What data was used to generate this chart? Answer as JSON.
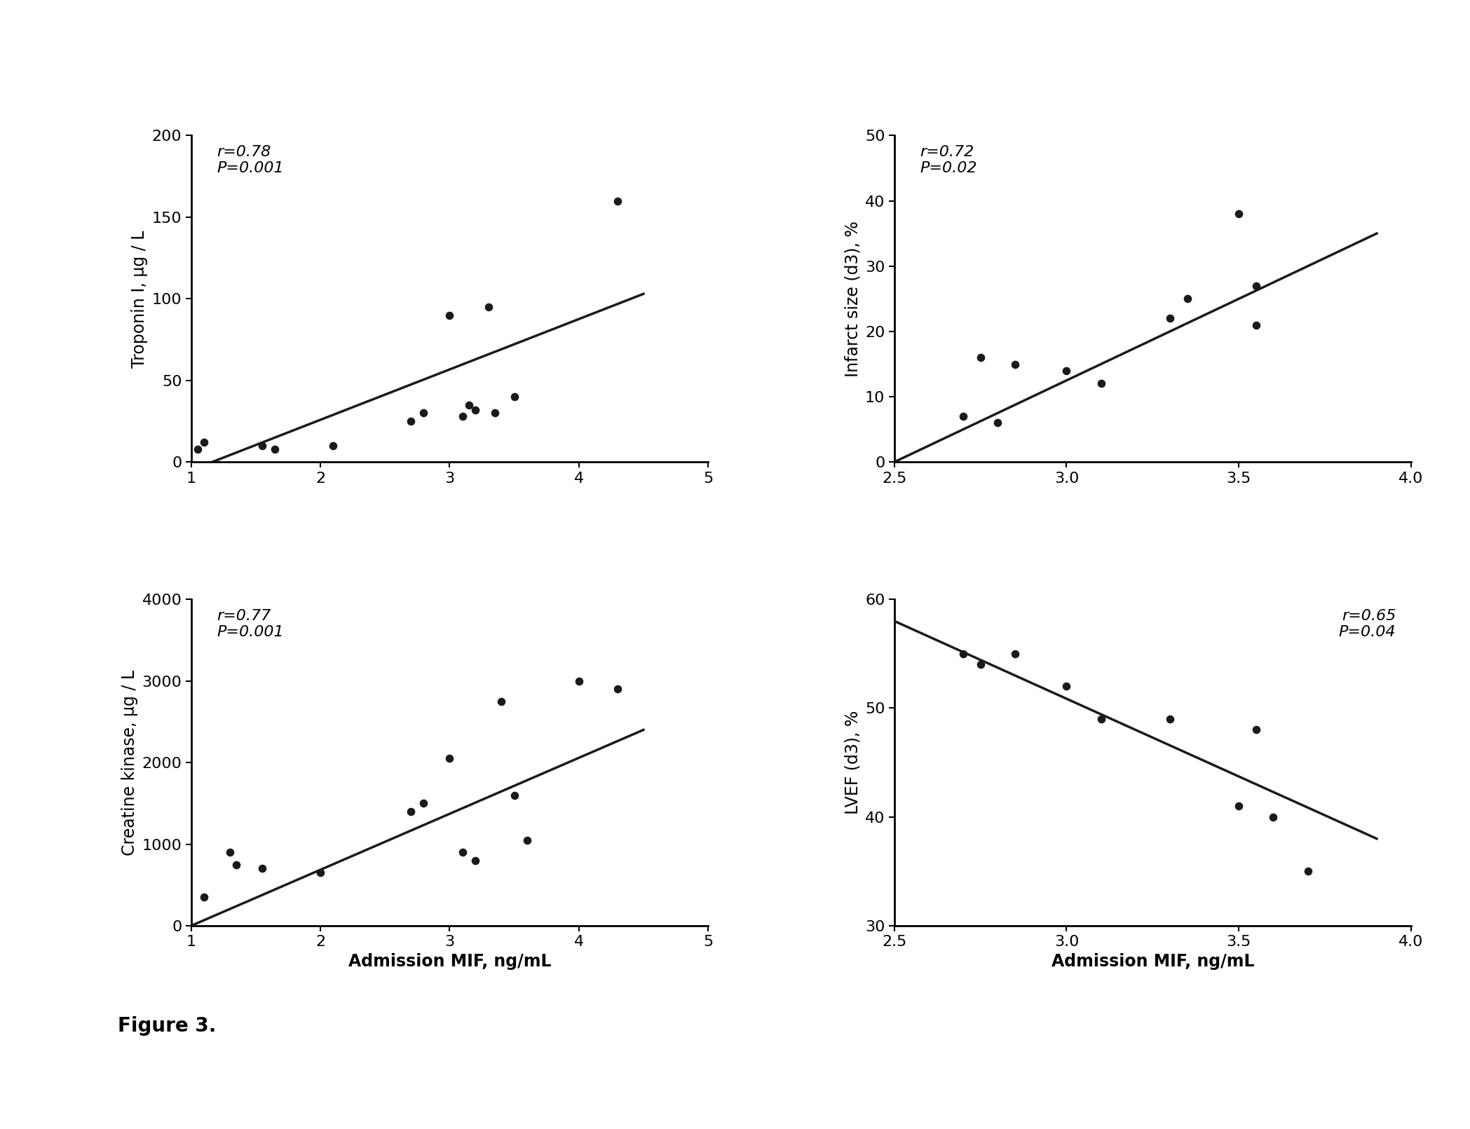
{
  "panel1": {
    "ylabel": "Troponin I, μg / L",
    "xlabel": "",
    "annotation": "r=0.78\nP=0.001",
    "annotation_loc": "upper left",
    "xlim": [
      1,
      5
    ],
    "ylim": [
      0,
      200
    ],
    "xticks": [
      1,
      2,
      3,
      4,
      5
    ],
    "yticks": [
      0,
      50,
      100,
      150,
      200
    ],
    "x": [
      1.05,
      1.1,
      1.55,
      1.65,
      2.1,
      2.7,
      2.8,
      3.0,
      3.1,
      3.15,
      3.2,
      3.3,
      3.35,
      3.5,
      4.3
    ],
    "y": [
      8,
      12,
      10,
      8,
      10,
      25,
      30,
      90,
      28,
      35,
      32,
      95,
      30,
      40,
      160
    ],
    "fit_x": [
      1.0,
      4.5
    ],
    "fit_y": [
      -5,
      103
    ]
  },
  "panel2": {
    "ylabel": "Infarct size (d3), %",
    "xlabel": "",
    "annotation": "r=0.72\nP=0.02",
    "annotation_loc": "upper left",
    "xlim": [
      2.5,
      4.0
    ],
    "ylim": [
      0,
      50
    ],
    "xticks": [
      2.5,
      3.0,
      3.5,
      4.0
    ],
    "yticks": [
      0,
      10,
      20,
      30,
      40,
      50
    ],
    "x": [
      2.7,
      2.75,
      2.8,
      2.85,
      3.0,
      3.1,
      3.3,
      3.35,
      3.5,
      3.55,
      3.55
    ],
    "y": [
      7,
      16,
      6,
      15,
      14,
      12,
      22,
      25,
      38,
      21,
      27
    ],
    "fit_x": [
      2.5,
      3.9
    ],
    "fit_y": [
      0,
      35
    ]
  },
  "panel3": {
    "ylabel": "Creatine kinase, μg / L",
    "xlabel": "Admission MIF, ng/mL",
    "annotation": "r=0.77\nP=0.001",
    "annotation_loc": "upper left",
    "xlim": [
      1,
      5
    ],
    "ylim": [
      0,
      4000
    ],
    "xticks": [
      1,
      2,
      3,
      4,
      5
    ],
    "yticks": [
      0,
      1000,
      2000,
      3000,
      4000
    ],
    "x": [
      1.1,
      1.3,
      1.35,
      1.55,
      2.0,
      2.7,
      2.8,
      3.0,
      3.1,
      3.2,
      3.4,
      3.5,
      3.6,
      4.0,
      4.3
    ],
    "y": [
      350,
      900,
      750,
      700,
      650,
      1400,
      1500,
      2050,
      900,
      800,
      2750,
      1600,
      1050,
      3000,
      2900
    ],
    "fit_x": [
      1.0,
      4.5
    ],
    "fit_y": [
      0,
      2400
    ]
  },
  "panel4": {
    "ylabel": "LVEF (d3), %",
    "xlabel": "Admission MIF, ng/mL",
    "annotation": "r=0.65\nP=0.04",
    "annotation_loc": "upper right",
    "xlim": [
      2.5,
      4.0
    ],
    "ylim": [
      30,
      60
    ],
    "xticks": [
      2.5,
      3.0,
      3.5,
      4.0
    ],
    "yticks": [
      30,
      40,
      50,
      60
    ],
    "x": [
      2.7,
      2.75,
      2.85,
      3.0,
      3.1,
      3.3,
      3.5,
      3.55,
      3.6,
      3.7
    ],
    "y": [
      55,
      54,
      55,
      52,
      49,
      49,
      41,
      48,
      40,
      35
    ],
    "fit_x": [
      2.5,
      3.9
    ],
    "fit_y": [
      58,
      38
    ]
  },
  "figure_label": "Figure 3.",
  "background_color": "#ffffff",
  "dot_color": "#1a1a1a",
  "line_color": "#1a1a1a",
  "annotation_fontsize": 16,
  "axis_label_fontsize": 17,
  "tick_fontsize": 16,
  "figure_label_fontsize": 20
}
